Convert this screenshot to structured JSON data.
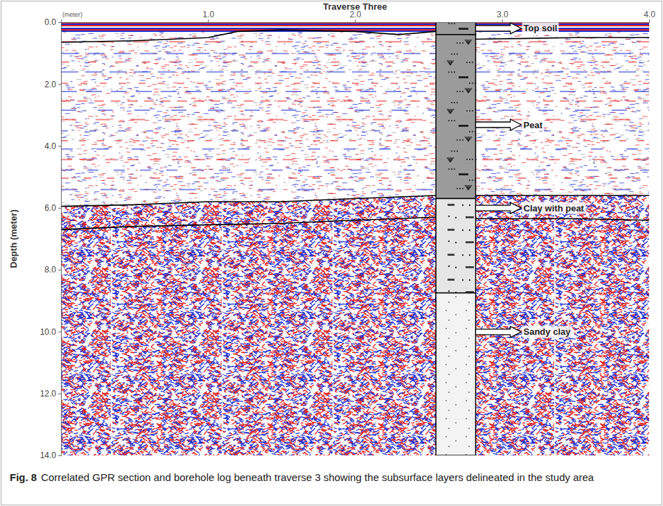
{
  "chart_data": {
    "type": "radargram",
    "title": "Traverse Three",
    "x_label": "(meter)",
    "y_label": "Depth (meter)",
    "xlim": [
      0,
      4.0
    ],
    "xticks": [
      {
        "value": 1,
        "label": "1.0"
      },
      {
        "value": 2,
        "label": "2.0"
      },
      {
        "value": 3,
        "label": "3.0"
      },
      {
        "value": 4,
        "label": "4.0"
      }
    ],
    "ylim": [
      0,
      14.0
    ],
    "yticks": [
      {
        "value": 0,
        "label": "0.0"
      },
      {
        "value": 2,
        "label": "2.0"
      },
      {
        "value": 4,
        "label": "4.0"
      },
      {
        "value": 6,
        "label": "6.0"
      },
      {
        "value": 8,
        "label": "8.0"
      },
      {
        "value": 10,
        "label": "10.0"
      },
      {
        "value": 12,
        "label": "12.0"
      },
      {
        "value": 14,
        "label": "14.0"
      }
    ],
    "grid": false,
    "series": [
      {
        "color": "#000000",
        "x": [
          0,
          0.5,
          1.0,
          1.2,
          1.5,
          2.0,
          2.3,
          2.55,
          2.7,
          2.82,
          3.5,
          4.0
        ],
        "values": [
          0.65,
          0.6,
          0.5,
          0.3,
          0.25,
          0.3,
          0.4,
          0.3,
          null,
          0.55,
          0.5,
          0.5
        ]
      },
      {
        "color": "#000000",
        "x": [
          0,
          0.5,
          1.0,
          1.5,
          2.0,
          2.55,
          2.7,
          2.82,
          3.5,
          4.0
        ],
        "values": [
          5.95,
          5.9,
          5.8,
          5.8,
          5.7,
          5.6,
          null,
          5.6,
          5.6,
          5.6
        ]
      },
      {
        "color": "#000000",
        "x": [
          0,
          0.5,
          1.0,
          1.5,
          2.0,
          2.55,
          2.7,
          2.82,
          3.5,
          4.0
        ],
        "values": [
          6.7,
          6.6,
          6.55,
          6.5,
          6.4,
          6.3,
          null,
          6.35,
          6.35,
          6.4
        ]
      }
    ],
    "borehole": {
      "x": [
        2.55,
        2.82
      ],
      "layers": [
        {
          "label": "Top soil",
          "top": 0,
          "bottom": 0.4
        },
        {
          "label": "Peat",
          "top": 0.4,
          "bottom": 5.7
        },
        {
          "label": "Clay with peat",
          "top": 5.7,
          "bottom": 8.75
        },
        {
          "label": "Sandy clay",
          "top": 8.75,
          "bottom": 14.0
        }
      ]
    },
    "fig_label": "Fig. 8",
    "caption": "Correlated GPR section and borehole log beneath traverse 3 showing the subsurface layers delineated in the study area"
  }
}
